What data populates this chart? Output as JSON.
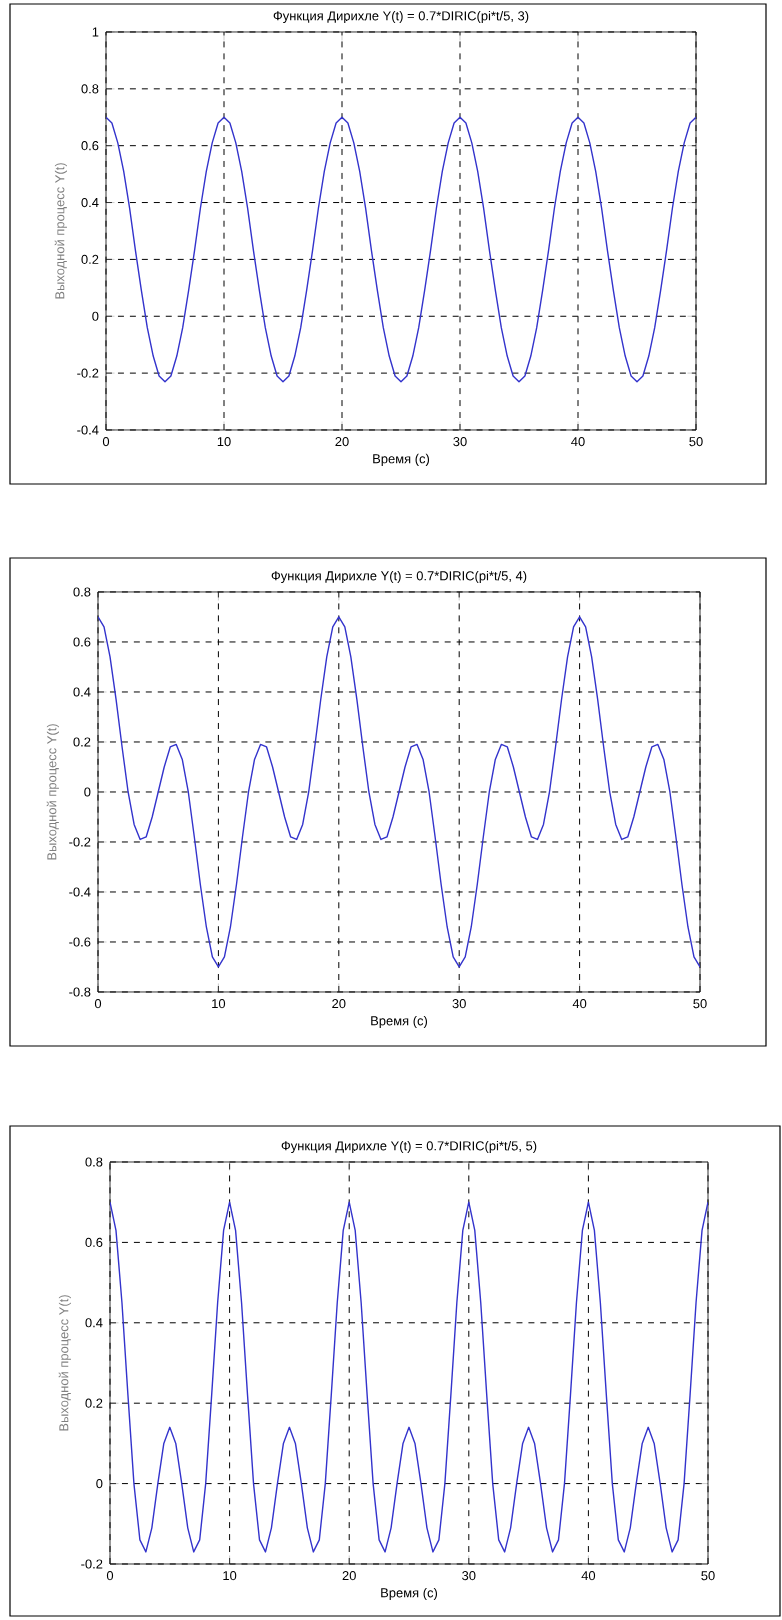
{
  "chart_data": [
    {
      "type": "line",
      "title": "Функция Дирихле Y(t) = 0.7*DIRIC(pi*t/5, 3)",
      "xlabel": "Время (с)",
      "ylabel": "Выходной процесс Y(t)",
      "xlim": [
        0,
        50
      ],
      "ylim": [
        -0.4,
        1
      ],
      "xticks": [
        0,
        10,
        20,
        30,
        40,
        50
      ],
      "yticks": [
        -0.4,
        -0.2,
        0,
        0.2,
        0.4,
        0.6,
        0.8,
        1
      ],
      "grid": true,
      "x": [
        0,
        0.5,
        1,
        1.5,
        2,
        2.5,
        3,
        3.5,
        4,
        4.5,
        5,
        5.5,
        6,
        6.5,
        7,
        7.5,
        8,
        8.5,
        9,
        9.5,
        10,
        10.5,
        11,
        11.5,
        12,
        12.5,
        13,
        13.5,
        14,
        14.5,
        15,
        15.5,
        16,
        16.5,
        17,
        17.5,
        18,
        18.5,
        19,
        19.5,
        20,
        20.5,
        21,
        21.5,
        22,
        22.5,
        23,
        23.5,
        24,
        24.5,
        25,
        25.5,
        26,
        26.5,
        27,
        27.5,
        28,
        28.5,
        29,
        29.5,
        30,
        30.5,
        31,
        31.5,
        32,
        32.5,
        33,
        33.5,
        34,
        34.5,
        35,
        35.5,
        36,
        36.5,
        37,
        37.5,
        38,
        38.5,
        39,
        39.5,
        40,
        40.5,
        41,
        41.5,
        42,
        42.5,
        43,
        43.5,
        44,
        44.5,
        45,
        45.5,
        46,
        46.5,
        47,
        47.5,
        48,
        48.5,
        49,
        49.5,
        50
      ],
      "series": [
        {
          "color": "#3333cc",
          "values": [
            0.7,
            0.68,
            0.61,
            0.51,
            0.38,
            0.23,
            0.09,
            -0.04,
            -0.14,
            -0.21,
            -0.23,
            -0.21,
            -0.14,
            -0.04,
            0.09,
            0.23,
            0.38,
            0.51,
            0.61,
            0.68,
            0.7,
            0.68,
            0.61,
            0.51,
            0.38,
            0.23,
            0.09,
            -0.04,
            -0.14,
            -0.21,
            -0.23,
            -0.21,
            -0.14,
            -0.04,
            0.09,
            0.23,
            0.38,
            0.51,
            0.61,
            0.68,
            0.7,
            0.68,
            0.61,
            0.51,
            0.38,
            0.23,
            0.09,
            -0.04,
            -0.14,
            -0.21,
            -0.23,
            -0.21,
            -0.14,
            -0.04,
            0.09,
            0.23,
            0.38,
            0.51,
            0.61,
            0.68,
            0.7,
            0.68,
            0.61,
            0.51,
            0.38,
            0.23,
            0.09,
            -0.04,
            -0.14,
            -0.21,
            -0.23,
            -0.21,
            -0.14,
            -0.04,
            0.09,
            0.23,
            0.38,
            0.51,
            0.61,
            0.68,
            0.7,
            0.68,
            0.61,
            0.51,
            0.38,
            0.23,
            0.09,
            -0.04,
            -0.14,
            -0.21,
            -0.23,
            -0.21,
            -0.14,
            -0.04,
            0.09,
            0.23,
            0.38,
            0.51,
            0.61,
            0.68,
            0.7
          ]
        }
      ]
    },
    {
      "type": "line",
      "title": "Функция Дирихле Y(t) = 0.7*DIRIC(pi*t/5, 4)",
      "xlabel": "Время (с)",
      "ylabel": "Выходной процесс Y(t)",
      "xlim": [
        0,
        50
      ],
      "ylim": [
        -0.8,
        0.8
      ],
      "xticks": [
        0,
        10,
        20,
        30,
        40,
        50
      ],
      "yticks": [
        -0.8,
        -0.6,
        -0.4,
        -0.2,
        0,
        0.2,
        0.4,
        0.6,
        0.8
      ],
      "grid": true,
      "x": [
        0,
        0.5,
        1,
        1.5,
        2,
        2.5,
        3,
        3.5,
        4,
        4.5,
        5,
        5.5,
        6,
        6.5,
        7,
        7.5,
        8,
        8.5,
        9,
        9.5,
        10,
        10.5,
        11,
        11.5,
        12,
        12.5,
        13,
        13.5,
        14,
        14.5,
        15,
        15.5,
        16,
        16.5,
        17,
        17.5,
        18,
        18.5,
        19,
        19.5,
        20,
        20.5,
        21,
        21.5,
        22,
        22.5,
        23,
        23.5,
        24,
        24.5,
        25,
        25.5,
        26,
        26.5,
        27,
        27.5,
        28,
        28.5,
        29,
        29.5,
        30,
        30.5,
        31,
        31.5,
        32,
        32.5,
        33,
        33.5,
        34,
        34.5,
        35,
        35.5,
        36,
        36.5,
        37,
        37.5,
        38,
        38.5,
        39,
        39.5,
        40,
        40.5,
        41,
        41.5,
        42,
        42.5,
        43,
        43.5,
        44,
        44.5,
        45,
        45.5,
        46,
        46.5,
        47,
        47.5,
        48,
        48.5,
        49,
        49.5,
        50
      ],
      "series": [
        {
          "color": "#3333cc",
          "values": [
            0.7,
            0.66,
            0.54,
            0.37,
            0.18,
            0,
            -0.13,
            -0.19,
            -0.18,
            -0.1,
            0,
            0.1,
            0.18,
            0.19,
            0.13,
            0,
            -0.18,
            -0.37,
            -0.54,
            -0.66,
            -0.7,
            -0.66,
            -0.54,
            -0.37,
            -0.18,
            0,
            0.13,
            0.19,
            0.18,
            0.1,
            0,
            -0.1,
            -0.18,
            -0.19,
            -0.13,
            0,
            0.18,
            0.37,
            0.54,
            0.66,
            0.7,
            0.66,
            0.54,
            0.37,
            0.18,
            0,
            -0.13,
            -0.19,
            -0.18,
            -0.1,
            0,
            0.1,
            0.18,
            0.19,
            0.13,
            0,
            -0.18,
            -0.37,
            -0.54,
            -0.66,
            -0.7,
            -0.66,
            -0.54,
            -0.37,
            -0.18,
            0,
            0.13,
            0.19,
            0.18,
            0.1,
            0,
            -0.1,
            -0.18,
            -0.19,
            -0.13,
            0,
            0.18,
            0.37,
            0.54,
            0.66,
            0.7,
            0.66,
            0.54,
            0.37,
            0.18,
            0,
            -0.13,
            -0.19,
            -0.18,
            -0.1,
            0,
            0.1,
            0.18,
            0.19,
            0.13,
            0,
            -0.18,
            -0.37,
            -0.54,
            -0.66,
            -0.7
          ]
        }
      ]
    },
    {
      "type": "line",
      "title": "Функция Дирихле Y(t) = 0.7*DIRIC(pi*t/5, 5)",
      "xlabel": "Время (с)",
      "ylabel": "Выходной процесс Y(t)",
      "xlim": [
        0,
        50
      ],
      "ylim": [
        -0.2,
        0.8
      ],
      "xticks": [
        0,
        10,
        20,
        30,
        40,
        50
      ],
      "yticks": [
        -0.2,
        0,
        0.2,
        0.4,
        0.6,
        0.8
      ],
      "grid": true,
      "x": [
        0,
        0.5,
        1,
        1.5,
        2,
        2.5,
        3,
        3.5,
        4,
        4.5,
        5,
        5.5,
        6,
        6.5,
        7,
        7.5,
        8,
        8.5,
        9,
        9.5,
        10,
        10.5,
        11,
        11.5,
        12,
        12.5,
        13,
        13.5,
        14,
        14.5,
        15,
        15.5,
        16,
        16.5,
        17,
        17.5,
        18,
        18.5,
        19,
        19.5,
        20,
        20.5,
        21,
        21.5,
        22,
        22.5,
        23,
        23.5,
        24,
        24.5,
        25,
        25.5,
        26,
        26.5,
        27,
        27.5,
        28,
        28.5,
        29,
        29.5,
        30,
        30.5,
        31,
        31.5,
        32,
        32.5,
        33,
        33.5,
        34,
        34.5,
        35,
        35.5,
        36,
        36.5,
        37,
        37.5,
        38,
        38.5,
        39,
        39.5,
        40,
        40.5,
        41,
        41.5,
        42,
        42.5,
        43,
        43.5,
        44,
        44.5,
        45,
        45.5,
        46,
        46.5,
        47,
        47.5,
        48,
        48.5,
        49,
        49.5,
        50
      ],
      "series": [
        {
          "color": "#3333cc",
          "values": [
            0.7,
            0.63,
            0.45,
            0.22,
            0,
            -0.14,
            -0.17,
            -0.11,
            0,
            0.1,
            0.14,
            0.1,
            0,
            -0.11,
            -0.17,
            -0.14,
            0,
            0.22,
            0.45,
            0.63,
            0.7,
            0.63,
            0.45,
            0.22,
            0,
            -0.14,
            -0.17,
            -0.11,
            0,
            0.1,
            0.14,
            0.1,
            0,
            -0.11,
            -0.17,
            -0.14,
            0,
            0.22,
            0.45,
            0.63,
            0.7,
            0.63,
            0.45,
            0.22,
            0,
            -0.14,
            -0.17,
            -0.11,
            0,
            0.1,
            0.14,
            0.1,
            0,
            -0.11,
            -0.17,
            -0.14,
            0,
            0.22,
            0.45,
            0.63,
            0.7,
            0.63,
            0.45,
            0.22,
            0,
            -0.14,
            -0.17,
            -0.11,
            0,
            0.1,
            0.14,
            0.1,
            0,
            -0.11,
            -0.17,
            -0.14,
            0,
            0.22,
            0.45,
            0.63,
            0.7,
            0.63,
            0.45,
            0.22,
            0,
            -0.14,
            -0.17,
            -0.11,
            0,
            0.1,
            0.14,
            0.1,
            0,
            -0.11,
            -0.17,
            -0.14,
            0,
            0.22,
            0.45,
            0.63,
            0.7
          ]
        }
      ]
    }
  ]
}
